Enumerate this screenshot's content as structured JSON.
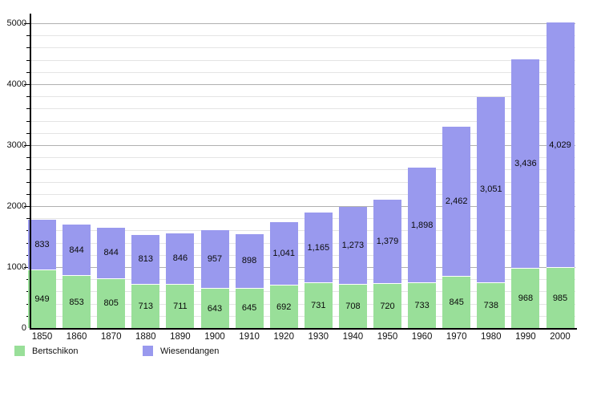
{
  "chart_data": {
    "type": "bar",
    "stacked": true,
    "title": "",
    "xlabel": "",
    "ylabel": "",
    "categories": [
      "1850",
      "1860",
      "1870",
      "1880",
      "1890",
      "1900",
      "1910",
      "1920",
      "1930",
      "1940",
      "1950",
      "1960",
      "1970",
      "1980",
      "1990",
      "2000"
    ],
    "series": [
      {
        "name": "Bertschikon",
        "color": "#99DF99",
        "values": [
          949,
          853,
          805,
          713,
          711,
          643,
          645,
          692,
          731,
          708,
          720,
          733,
          845,
          738,
          968,
          985
        ]
      },
      {
        "name": "Wiesendangen",
        "color": "#9999EE",
        "values": [
          833,
          844,
          844,
          813,
          846,
          957,
          898,
          1041,
          1165,
          1273,
          1379,
          1898,
          2462,
          3051,
          3436,
          4029
        ]
      }
    ],
    "value_labels": "inside-segments, thousands separated with comma",
    "ylim": [
      0,
      5000
    ],
    "y_major_step": 1000,
    "y_minor_step": 200,
    "y_tick_labels": [
      "0",
      "1000",
      "2000",
      "3000",
      "4000",
      "5000"
    ],
    "grid": true,
    "legend_position": "bottom-left"
  }
}
